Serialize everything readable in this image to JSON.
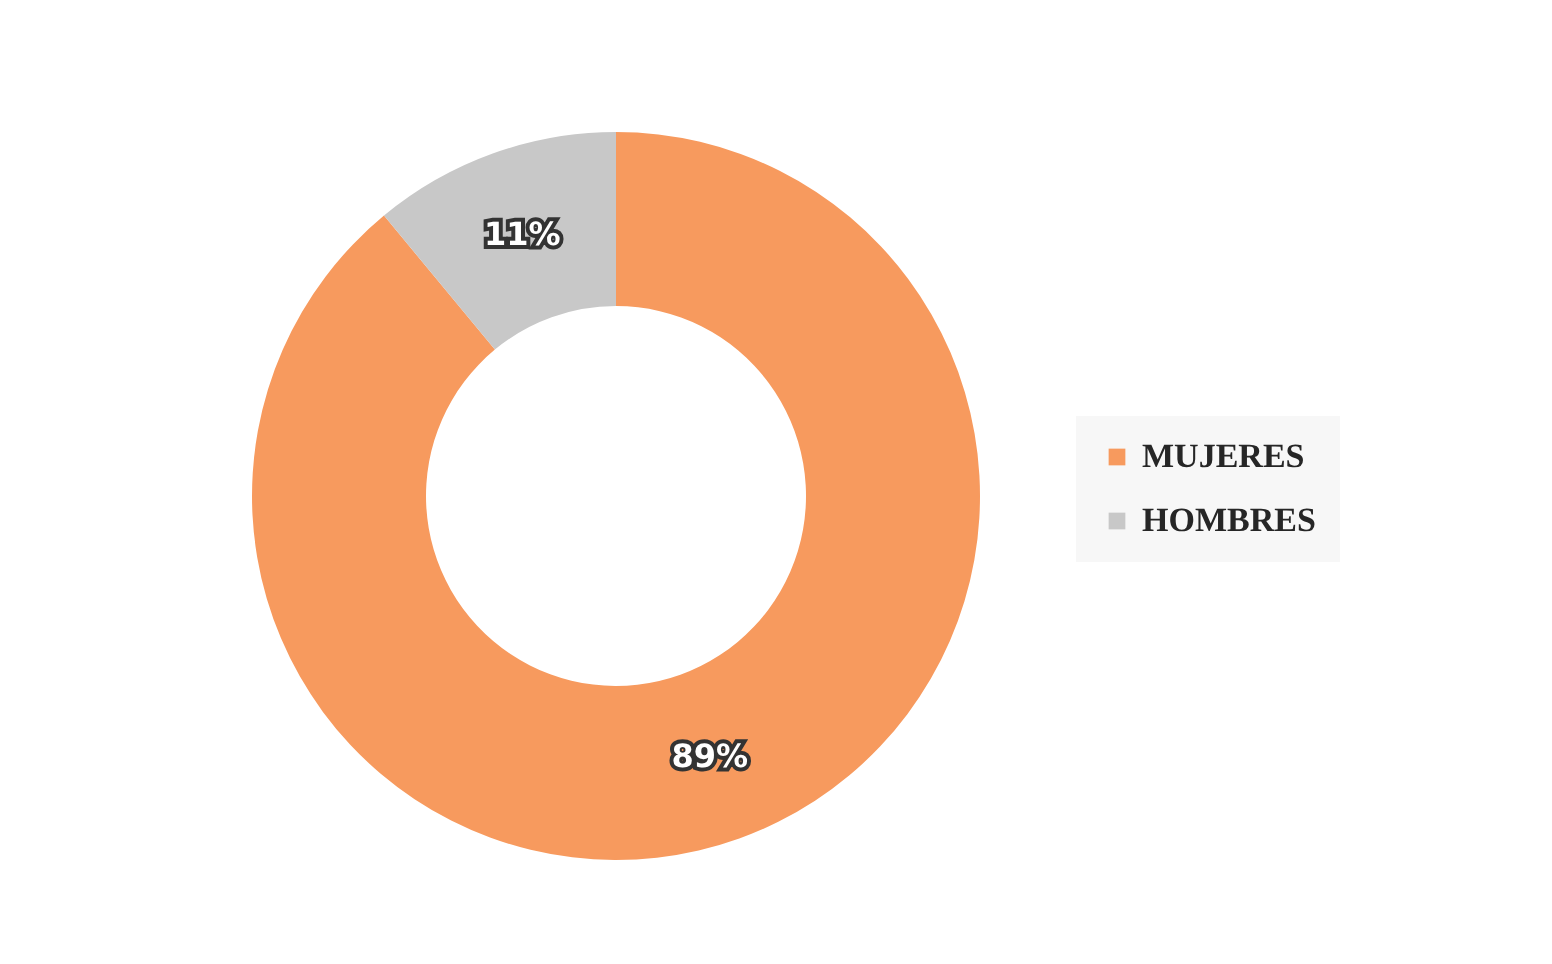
{
  "chart_data": {
    "type": "donut",
    "categories": [
      "MUJERES",
      "HOMBRES"
    ],
    "values": [
      89,
      11
    ],
    "colors": [
      "#f79a5e",
      "#c8c8c8"
    ],
    "value_labels": [
      "89%",
      "11%"
    ],
    "legend": "right"
  }
}
